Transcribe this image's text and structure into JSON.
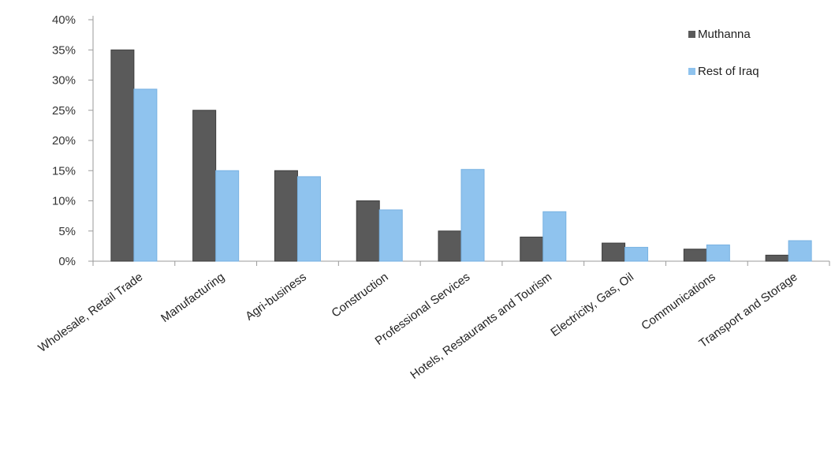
{
  "chart_data": {
    "type": "bar",
    "title": "",
    "xlabel": "",
    "ylabel": "",
    "categories": [
      "Wholesale, Retail Trade",
      "Manufacturing",
      "Agri-business",
      "Construction",
      "Professional Services",
      "Hotels, Restaurants and Tourism",
      "Electricity, Gas, Oil",
      "Communications",
      "Transport and Storage"
    ],
    "series": [
      {
        "name": "Muthanna",
        "color": "#5a5a5a",
        "values": [
          35,
          25,
          15,
          10,
          5,
          4,
          3,
          2,
          1
        ]
      },
      {
        "name": "Rest of Iraq",
        "color": "#8fc3ee",
        "values": [
          28.5,
          15,
          14,
          8.5,
          15.2,
          8.2,
          2.3,
          2.7,
          3.4
        ]
      }
    ],
    "ylim": [
      0,
      40
    ],
    "yticks": [
      0,
      5,
      10,
      15,
      20,
      25,
      30,
      35,
      40
    ],
    "ytick_labels": [
      "0%",
      "5%",
      "10%",
      "15%",
      "20%",
      "25%",
      "30%",
      "35%",
      "40%"
    ],
    "grid": false,
    "legend_position": "top-right"
  }
}
